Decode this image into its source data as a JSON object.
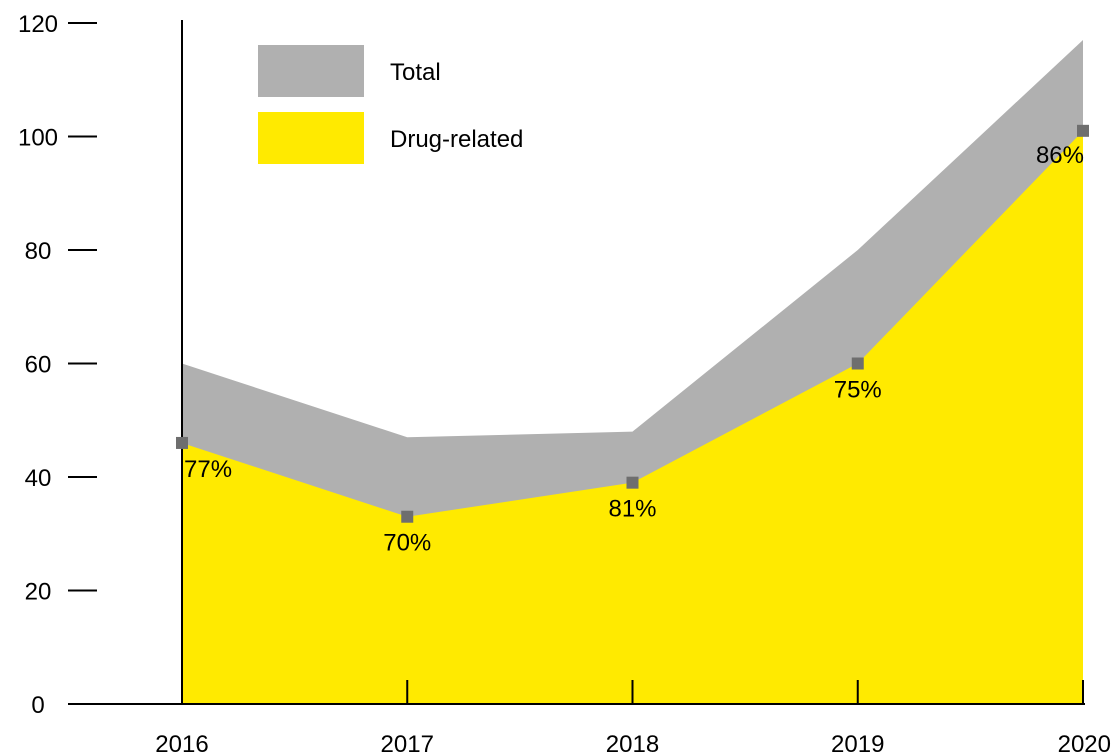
{
  "chart_data": {
    "type": "area",
    "x": [
      "2016",
      "2017",
      "2018",
      "2019",
      "2020"
    ],
    "series": [
      {
        "name": "Total",
        "values": [
          60,
          47,
          48,
          80,
          117
        ],
        "color": "#b0b0b0"
      },
      {
        "name": "Drug-related",
        "values": [
          46,
          33,
          39,
          60,
          101
        ],
        "color": "#ffea00"
      }
    ],
    "data_labels": [
      "77%",
      "70%",
      "81%",
      "75%",
      "86%"
    ],
    "marker_color": "#6e6e6e",
    "yticks": [
      "0",
      "20",
      "40",
      "60",
      "80",
      "100",
      "120"
    ],
    "ylim": [
      0,
      120
    ],
    "legend_position": "top-left",
    "grid": false
  }
}
